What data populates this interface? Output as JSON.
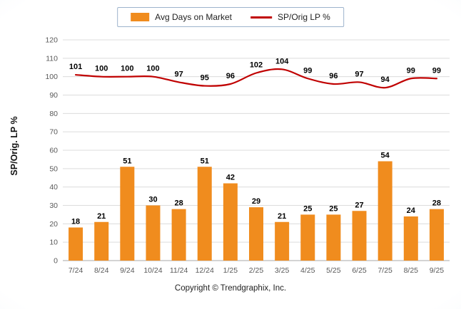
{
  "chart_data": {
    "type": "bar+line",
    "categories": [
      "7/24",
      "8/24",
      "9/24",
      "10/24",
      "11/24",
      "12/24",
      "1/25",
      "2/25",
      "3/25",
      "4/25",
      "5/25",
      "6/25",
      "7/25",
      "8/25",
      "9/25"
    ],
    "series": [
      {
        "name": "Avg Days on Market",
        "type": "bar",
        "color": "#F08C1E",
        "values": [
          18,
          21,
          51,
          30,
          28,
          51,
          42,
          29,
          21,
          25,
          25,
          27,
          54,
          24,
          28
        ]
      },
      {
        "name": "SP/Orig LP %",
        "type": "line",
        "color": "#C00000",
        "values": [
          101,
          100,
          100,
          100,
          97,
          95,
          96,
          102,
          104,
          99,
          96,
          97,
          94,
          99,
          99
        ]
      }
    ],
    "title": "",
    "xlabel": "",
    "ylabel": "SP/Orig. LP %",
    "ylim": [
      0,
      120
    ],
    "ytick": 10,
    "grid": "horizontal",
    "legend_position": "top-center",
    "footer": "Copyright © Trendgraphix, Inc."
  }
}
